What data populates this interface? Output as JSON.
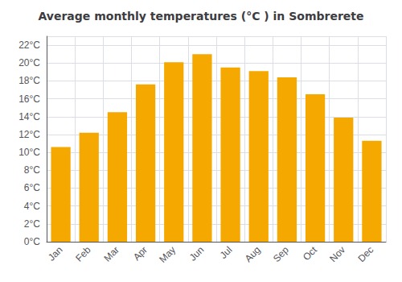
{
  "chart_data": {
    "type": "bar",
    "title": "Average monthly temperatures (°C ) in Sombrerete",
    "categories": [
      "Jan",
      "Feb",
      "Mar",
      "Apr",
      "May",
      "Jun",
      "Jul",
      "Aug",
      "Sep",
      "Oct",
      "Nov",
      "Dec"
    ],
    "values": [
      10.6,
      12.2,
      14.5,
      17.6,
      20.1,
      21.0,
      19.5,
      19.1,
      18.4,
      16.5,
      13.9,
      11.3
    ],
    "color": "#F5A800",
    "ylim": [
      0,
      23
    ],
    "yticks": [
      {
        "value": 0,
        "label": "0°C"
      },
      {
        "value": 2,
        "label": "2°C"
      },
      {
        "value": 4,
        "label": "4°C"
      },
      {
        "value": 6,
        "label": "6°C"
      },
      {
        "value": 8,
        "label": "8°C"
      },
      {
        "value": 10,
        "label": "10°C"
      },
      {
        "value": 12,
        "label": "12°C"
      },
      {
        "value": 14,
        "label": "14°C"
      },
      {
        "value": 16,
        "label": "16°C"
      },
      {
        "value": 18,
        "label": "18°C"
      },
      {
        "value": 20,
        "label": "20°C"
      },
      {
        "value": 22,
        "label": "22°C"
      }
    ],
    "grid": true
  }
}
